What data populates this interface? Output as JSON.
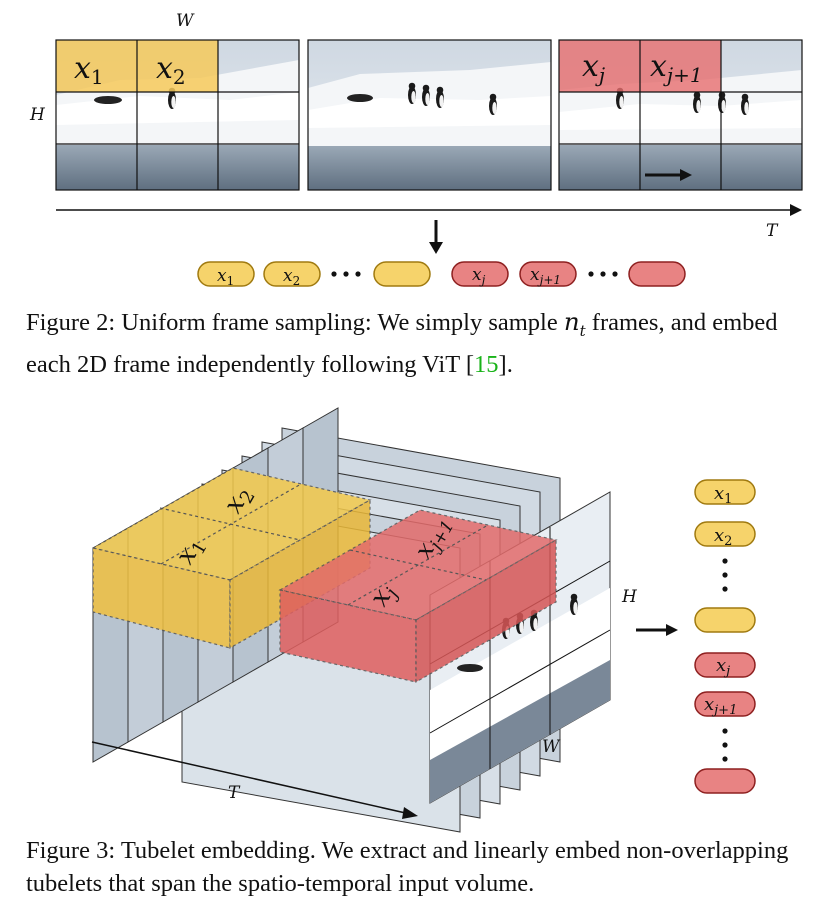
{
  "figure2": {
    "axis_w": "W",
    "axis_h": "H",
    "axis_t": "T",
    "patch_labels": {
      "x1": "x",
      "x1_sub": "1",
      "x2": "x",
      "x2_sub": "2",
      "xj": "x",
      "xj_sub": "j",
      "xj1": "x",
      "xj1_sub": "j+1"
    },
    "tokens": [
      {
        "label": "x",
        "sub": "1",
        "color": "yellow"
      },
      {
        "label": "x",
        "sub": "2",
        "color": "yellow"
      },
      {
        "label": "",
        "sub": "",
        "color": "yellow"
      },
      {
        "label": "x",
        "sub": "j",
        "color": "red"
      },
      {
        "label": "x",
        "sub": "j+1",
        "color": "red"
      },
      {
        "label": "",
        "sub": "",
        "color": "red"
      }
    ],
    "caption_prefix": "Figure 2: Uniform frame sampling: We simply sample ",
    "caption_math": "n",
    "caption_math_sub": "t",
    "caption_mid": " frames, and embed each 2D frame independently following ViT [",
    "caption_ref": "15",
    "caption_suffix": "]."
  },
  "figure3": {
    "axis_h": "H",
    "axis_w": "W",
    "axis_t": "T",
    "cube_labels": {
      "x1": "x",
      "x1_sub": "1",
      "x2": "x",
      "x2_sub": "2",
      "xj": "x",
      "xj_sub": "j",
      "xj1": "x",
      "xj1_sub": "j+1"
    },
    "tokens": [
      {
        "label": "x",
        "sub": "1",
        "color": "yellow"
      },
      {
        "label": "x",
        "sub": "2",
        "color": "yellow"
      },
      {
        "label": "",
        "sub": "",
        "color": "yellow"
      },
      {
        "label": "x",
        "sub": "j",
        "color": "red"
      },
      {
        "label": "x",
        "sub": "j+1",
        "color": "red"
      },
      {
        "label": "",
        "sub": "",
        "color": "red"
      }
    ],
    "caption": "Figure 3: Tubelet embedding. We extract and linearly embed non-overlapping tubelets that span the spatio-temporal input volume."
  },
  "colors": {
    "yellow": "#f6d36b",
    "yellow_stroke": "#a07a10",
    "red": "#e88383",
    "red_stroke": "#8e2020",
    "ref": "#19b319"
  }
}
